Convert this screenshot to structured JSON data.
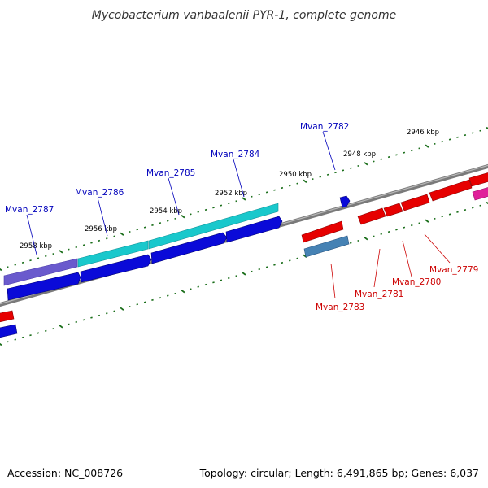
{
  "title": "Mycobacterium vanbaalenii PYR-1, complete genome",
  "accession": "Accession: NC_008726",
  "topology": "Topology: circular; Length: 6,491,865 bp; Genes: 6,037",
  "kbp_labels": [
    "2946 kbp",
    "2948 kbp",
    "2950 kbp",
    "2952 kbp",
    "2954 kbp",
    "2956 kbp",
    "2958 kbp"
  ],
  "forward_gene_labels": [
    "Mvan_2782",
    "Mvan_2784",
    "Mvan_2785",
    "Mvan_2786",
    "Mvan_2787"
  ],
  "reverse_gene_labels": [
    "Mvan_2779",
    "Mvan_2780",
    "Mvan_2781",
    "Mvan_2783"
  ],
  "colors": {
    "forward_label": "#0000bb",
    "reverse_label": "#cc0000",
    "tick": "#1a6e1a",
    "backbone": "#808080",
    "blue_cds": "#0a0ad8",
    "cyan_cds": "#19c8cc",
    "purple_cds": "#6a5acd",
    "red_cds": "#e60000",
    "steel_cds": "#4682b4",
    "magenta_cds": "#e0209a"
  }
}
